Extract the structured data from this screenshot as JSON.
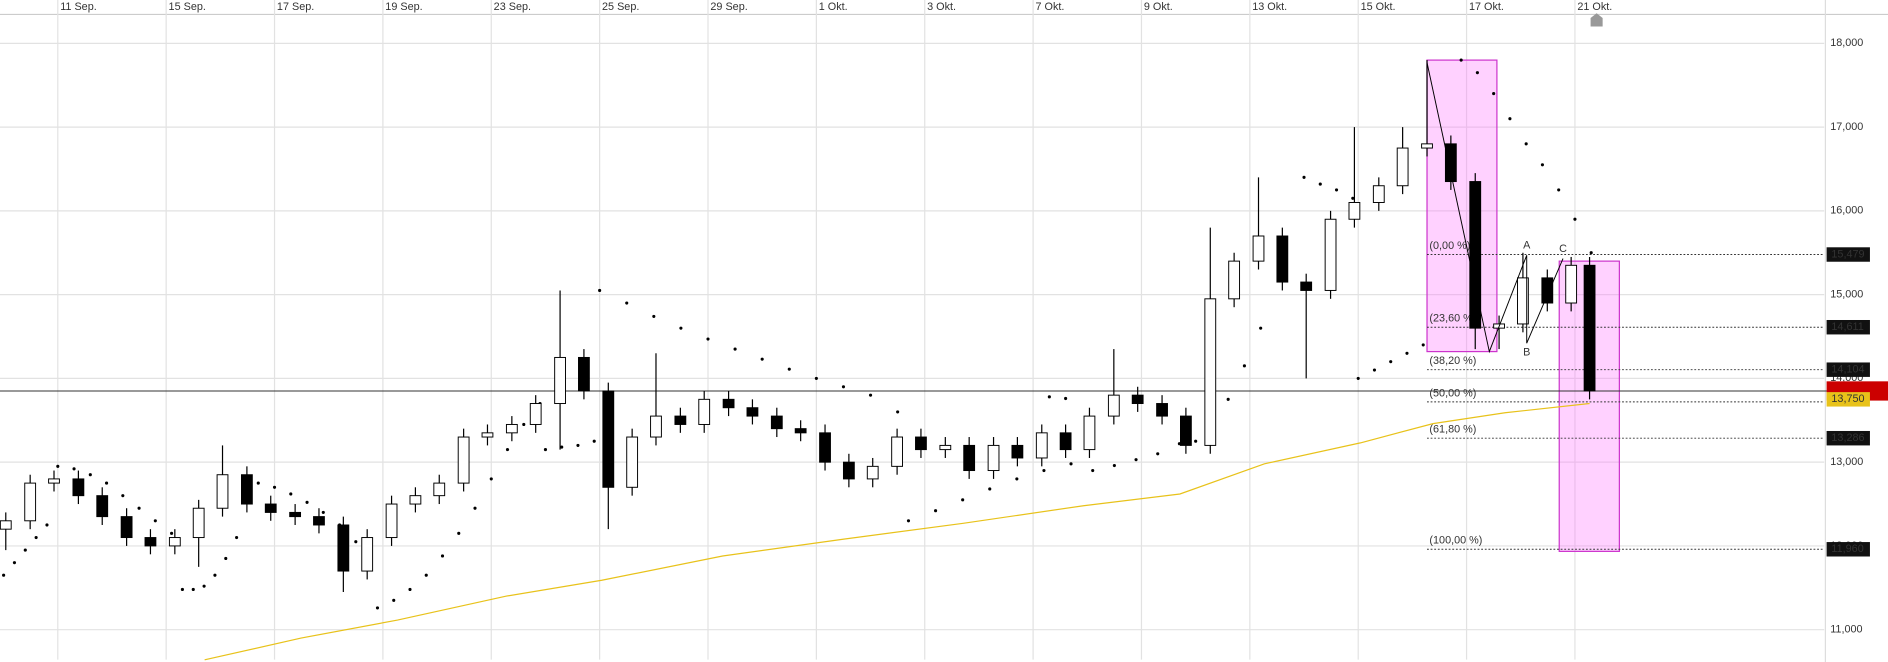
{
  "chart_data": {
    "type": "candlestick",
    "x": [
      -0.96,
      -0.51,
      -0.07,
      0.38,
      0.82,
      1.27,
      1.71,
      2.16,
      2.6,
      3.04,
      3.49,
      3.93,
      4.38,
      4.82,
      5.27,
      5.71,
      6.16,
      6.6,
      7.04,
      7.49,
      7.93,
      8.38,
      8.82,
      9.27,
      9.71,
      10.16,
      10.6,
      11.04,
      11.49,
      11.93,
      12.38,
      12.82,
      13.27,
      13.71,
      14.16,
      14.6,
      15.04,
      15.49,
      15.93,
      16.38,
      16.82,
      17.27,
      17.71,
      18.16,
      18.6,
      19.04,
      19.49,
      19.93,
      20.38,
      20.82,
      21.27,
      21.71,
      22.16,
      22.6,
      23.04,
      23.49,
      23.93,
      24.38,
      24.82,
      25.27,
      25.71,
      26.16,
      26.6,
      27.04,
      27.49,
      27.93,
      28.27
    ],
    "open": [
      12200,
      12300,
      12750,
      12800,
      12600,
      12350,
      12100,
      12000,
      12100,
      12450,
      12850,
      12500,
      12400,
      12350,
      12250,
      11700,
      12100,
      12500,
      12600,
      12750,
      13300,
      13350,
      13450,
      13700,
      14250,
      13850,
      12700,
      13300,
      13550,
      13450,
      13750,
      13650,
      13550,
      13400,
      13350,
      13000,
      12800,
      12950,
      13300,
      13150,
      13200,
      12900,
      13200,
      13050,
      13350,
      13150,
      13550,
      13800,
      13700,
      13550,
      13200,
      14950,
      15400,
      15700,
      15150,
      15050,
      15900,
      16100,
      16300,
      16750,
      16800,
      16350,
      14600,
      14650,
      15200,
      14900,
      15350
    ],
    "high": [
      12400,
      12850,
      12900,
      12900,
      12700,
      12450,
      12200,
      12200,
      12550,
      13200,
      12950,
      12600,
      12500,
      12450,
      12350,
      12200,
      12600,
      12700,
      12850,
      13400,
      13450,
      13550,
      13800,
      15050,
      14350,
      13950,
      13400,
      14300,
      13650,
      13850,
      13850,
      13750,
      13650,
      13500,
      13450,
      13100,
      13050,
      13400,
      13400,
      13300,
      13300,
      13300,
      13300,
      13450,
      13450,
      13650,
      14350,
      13900,
      13800,
      13650,
      15800,
      15500,
      16400,
      15800,
      15250,
      16000,
      17000,
      16400,
      17000,
      17800,
      16900,
      16450,
      14750,
      15500,
      15300,
      15450,
      15450
    ],
    "low": [
      11950,
      12200,
      12650,
      12500,
      12250,
      12000,
      11900,
      11900,
      11750,
      12350,
      12400,
      12300,
      12250,
      12150,
      11450,
      11600,
      12000,
      12400,
      12500,
      12650,
      13200,
      13250,
      13350,
      13150,
      13750,
      12200,
      12600,
      13200,
      13350,
      13350,
      13550,
      13450,
      13300,
      13250,
      12900,
      12700,
      12700,
      12850,
      13050,
      13050,
      12800,
      12800,
      12950,
      12950,
      13050,
      13050,
      13450,
      13600,
      13450,
      13100,
      13100,
      14850,
      15300,
      15050,
      14000,
      14950,
      15800,
      16000,
      16200,
      16650,
      16250,
      14350,
      14350,
      14550,
      14800,
      14800,
      13750
    ],
    "close": [
      12300,
      12750,
      12800,
      12600,
      12350,
      12100,
      12000,
      12100,
      12450,
      12850,
      12500,
      12400,
      12350,
      12250,
      11700,
      12100,
      12500,
      12600,
      12750,
      13300,
      13350,
      13450,
      13700,
      14250,
      13850,
      12700,
      13300,
      13550,
      13450,
      13750,
      13650,
      13550,
      13400,
      13350,
      13000,
      12800,
      12950,
      13300,
      13150,
      13200,
      12900,
      13200,
      13050,
      13350,
      13150,
      13550,
      13800,
      13700,
      13550,
      13200,
      14950,
      15400,
      15700,
      15150,
      15050,
      15900,
      16100,
      16300,
      16750,
      16800,
      16350,
      14600,
      14650,
      15200,
      14900,
      15350,
      13850
    ],
    "xlim": [
      -1.0667,
      32.6
    ],
    "ylim": [
      10643,
      18345
    ],
    "xticks": [
      {
        "value": 0,
        "label": "11 Sep."
      },
      {
        "value": 2,
        "label": "15 Sep."
      },
      {
        "value": 4,
        "label": "17 Sep."
      },
      {
        "value": 6,
        "label": "19 Sep."
      },
      {
        "value": 8,
        "label": "23 Sep."
      },
      {
        "value": 10,
        "label": "25 Sep."
      },
      {
        "value": 12,
        "label": "29 Sep."
      },
      {
        "value": 14,
        "label": "1 Okt."
      },
      {
        "value": 16,
        "label": "3 Okt."
      },
      {
        "value": 18,
        "label": "7 Okt."
      },
      {
        "value": 20,
        "label": "9 Okt."
      },
      {
        "value": 22,
        "label": "13 Okt."
      },
      {
        "value": 24,
        "label": "15 Okt."
      },
      {
        "value": 26,
        "label": "17 Okt."
      },
      {
        "value": 28,
        "label": "21 Okt."
      }
    ],
    "yticks": [
      {
        "value": 11000,
        "label": "11,000"
      },
      {
        "value": 12000,
        "label": "12,000"
      },
      {
        "value": 13000,
        "label": "13,000"
      },
      {
        "value": 14000,
        "label": "14,000"
      },
      {
        "value": 15000,
        "label": "15,000"
      },
      {
        "value": 16000,
        "label": "16,000"
      },
      {
        "value": 17000,
        "label": "17,000"
      },
      {
        "value": 18000,
        "label": "18,000"
      }
    ],
    "grid": true,
    "sar": {
      "color": "#000000",
      "x": [
        -1.0,
        -0.8,
        -0.6,
        -0.4,
        -0.2,
        0.0,
        0.3,
        0.6,
        0.9,
        1.2,
        1.5,
        1.8,
        2.1,
        2.3,
        2.5,
        2.7,
        2.9,
        3.1,
        3.3,
        3.7,
        4.0,
        4.3,
        4.6,
        4.9,
        5.2,
        5.5,
        5.9,
        6.2,
        6.5,
        6.8,
        7.1,
        7.4,
        7.7,
        8.0,
        8.3,
        8.6,
        8.9,
        9.0,
        9.3,
        9.6,
        9.9,
        10.0,
        10.5,
        11.0,
        11.5,
        12.0,
        12.5,
        13.0,
        13.5,
        14.0,
        14.5,
        15.0,
        15.5,
        15.7,
        16.2,
        16.7,
        17.2,
        17.7,
        18.2,
        18.7,
        18.3,
        18.6,
        19.1,
        19.5,
        19.9,
        20.3,
        20.7,
        21.0,
        21.3,
        21.6,
        21.9,
        22.2,
        23.0,
        23.3,
        23.6,
        23.9,
        24.0,
        24.3,
        24.6,
        24.9,
        25.2,
        25.9,
        26.2,
        26.5,
        26.8,
        27.1,
        27.4,
        27.7,
        28.0,
        28.3
      ],
      "values": [
        11650,
        11800,
        11950,
        12100,
        12250,
        12950,
        12920,
        12850,
        12750,
        12600,
        12450,
        12300,
        12150,
        11480,
        11480,
        11520,
        11650,
        11850,
        12100,
        12750,
        12700,
        12620,
        12520,
        12400,
        12250,
        12050,
        11260,
        11350,
        11480,
        11650,
        11880,
        12150,
        12450,
        12800,
        13150,
        13450,
        13700,
        13150,
        13180,
        13200,
        13250,
        15050,
        14900,
        14740,
        14600,
        14470,
        14350,
        14230,
        14110,
        14000,
        13900,
        13800,
        13600,
        12300,
        12420,
        12550,
        12680,
        12800,
        12900,
        12980,
        13780,
        13760,
        12900,
        12960,
        13030,
        13100,
        13220,
        13250,
        13450,
        13750,
        14150,
        14600,
        16400,
        16320,
        16250,
        16150,
        14000,
        14100,
        14200,
        14300,
        14400,
        17800,
        17650,
        17400,
        17100,
        16800,
        16550,
        16250,
        15900,
        15500
      ]
    },
    "ma": {
      "color": "#e8c21a",
      "x": [
        2.71,
        4.49,
        6.27,
        8.27,
        10.04,
        12.27,
        14.49,
        16.71,
        18.93,
        20.71,
        22.27,
        24.04,
        25.38,
        26.71,
        28.27
      ],
      "values": [
        10640,
        10900,
        11115,
        11400,
        11590,
        11880,
        12080,
        12270,
        12480,
        12620,
        12980,
        13230,
        13460,
        13590,
        13700
      ],
      "label": {
        "value": 13750,
        "label": "13,750"
      }
    },
    "fib": {
      "start": 25.27,
      "levels": [
        {
          "value": 15479,
          "label": "(0,00 %)"
        },
        {
          "value": 14611,
          "label": "(23,60 %)"
        },
        {
          "value": 14104,
          "label": "(38,20 %)"
        },
        {
          "value": 13720,
          "label": "(50,00 %)"
        },
        {
          "value": 13286,
          "label": "(61,80 %)"
        },
        {
          "value": 11960,
          "label": "(100,00 %)"
        }
      ],
      "price_labels": [
        {
          "value": 15479,
          "label": "15,479"
        },
        {
          "value": 14611,
          "label": "14,611"
        },
        {
          "value": 14104,
          "label": "14,104"
        },
        {
          "value": 13286,
          "label": "13,286"
        },
        {
          "value": 11960,
          "label": "11,960"
        }
      ]
    },
    "zones": {
      "color": "#ff66ff",
      "items": [
        {
          "x": [
            25.27,
            26.56
          ],
          "y": [
            14320,
            17800
          ]
        },
        {
          "x": [
            27.71,
            28.82
          ],
          "y": [
            11935,
            15400
          ]
        }
      ]
    },
    "pattern": {
      "x": [
        25.27,
        26.42,
        27.11,
        27.11,
        27.78
      ],
      "values": [
        17770,
        14320,
        15470,
        14420,
        15430
      ],
      "labels": [
        null,
        null,
        "A",
        "B",
        "C"
      ]
    },
    "last_price": {
      "value": 13850,
      "color": "#cc0000"
    }
  }
}
